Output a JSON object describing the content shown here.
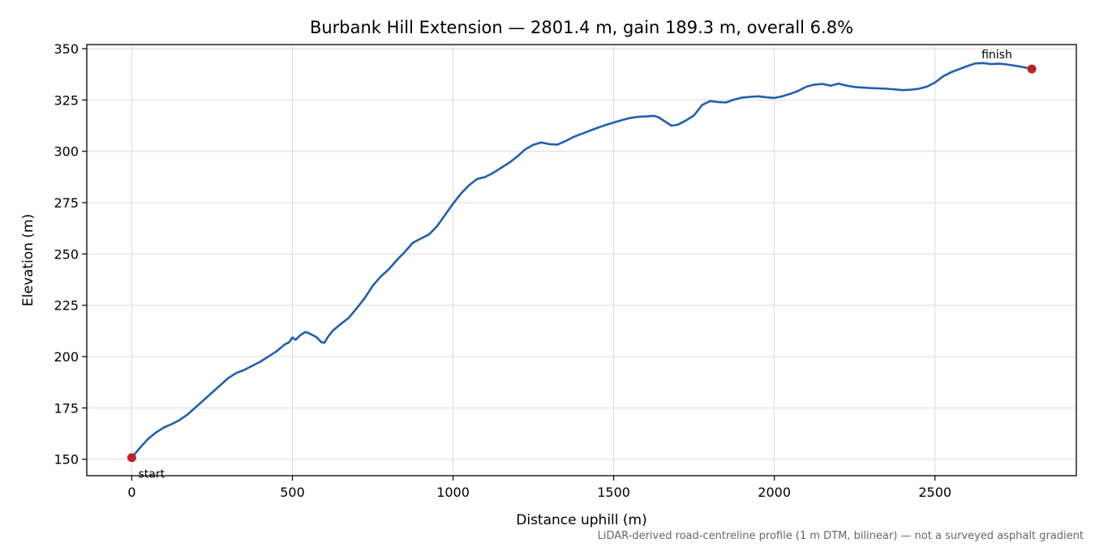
{
  "chart_data": {
    "type": "line",
    "title": "Burbank Hill Extension — 2801.4 m, gain 189.3 m, overall 6.8%",
    "xlabel": "Distance uphill (m)",
    "ylabel": "Elevation (m)",
    "xlim": [
      -140,
      2940
    ],
    "ylim": [
      142,
      352
    ],
    "x_ticks": [
      0,
      500,
      1000,
      1500,
      2000,
      2500
    ],
    "y_ticks": [
      150,
      175,
      200,
      225,
      250,
      275,
      300,
      325,
      350
    ],
    "grid": true,
    "line_color": "#2060b0",
    "marker_color": "#c0202d",
    "footnote": "LiDAR-derived road-centreline profile (1 m DTM, bilinear) — not a surveyed asphalt gradient",
    "annotations": [
      {
        "label": "start",
        "x": 0,
        "y": 150.8
      },
      {
        "label": "finish",
        "x": 2801.4,
        "y": 340.1
      }
    ],
    "series": [
      {
        "x": [
          0,
          25,
          50,
          75,
          100,
          125,
          150,
          175,
          200,
          250,
          300,
          325,
          350,
          400,
          450,
          475,
          490,
          500,
          510,
          525,
          540,
          550,
          575,
          590,
          600,
          610,
          625,
          640,
          650,
          675,
          700,
          725,
          750,
          775,
          800,
          825,
          850,
          875,
          900,
          925,
          950,
          975,
          1000,
          1025,
          1050,
          1075,
          1100,
          1125,
          1150,
          1175,
          1200,
          1225,
          1250,
          1275,
          1300,
          1325,
          1350,
          1375,
          1400,
          1425,
          1450,
          1475,
          1500,
          1525,
          1550,
          1575,
          1600,
          1625,
          1640,
          1660,
          1680,
          1700,
          1725,
          1750,
          1775,
          1800,
          1825,
          1850,
          1875,
          1900,
          1925,
          1950,
          1975,
          2000,
          2025,
          2050,
          2075,
          2100,
          2125,
          2150,
          2175,
          2200,
          2225,
          2250,
          2300,
          2350,
          2400,
          2425,
          2450,
          2475,
          2500,
          2525,
          2550,
          2575,
          2600,
          2625,
          2650,
          2675,
          2700,
          2725,
          2750,
          2775,
          2801.4
        ],
        "y": [
          150.8,
          155.5,
          159.8,
          163.0,
          165.5,
          167.2,
          169.2,
          172.0,
          175.5,
          182.5,
          189.5,
          192.0,
          193.5,
          197.5,
          202.5,
          205.8,
          207.0,
          209.3,
          208.2,
          210.5,
          212.0,
          211.5,
          209.5,
          207.0,
          206.8,
          209.5,
          212.5,
          214.5,
          215.8,
          218.8,
          223.5,
          228.5,
          234.5,
          239.0,
          242.5,
          247.0,
          251.0,
          255.5,
          257.5,
          259.5,
          263.5,
          269.0,
          274.5,
          279.5,
          283.5,
          286.5,
          287.5,
          289.5,
          292.0,
          294.5,
          297.5,
          301.0,
          303.2,
          304.3,
          303.5,
          303.3,
          305.0,
          307.0,
          308.5,
          310.0,
          311.5,
          312.8,
          314.0,
          315.2,
          316.2,
          316.8,
          317.0,
          317.3,
          316.5,
          314.5,
          312.5,
          313.0,
          315.0,
          317.5,
          322.5,
          324.5,
          324.0,
          323.8,
          325.2,
          326.2,
          326.5,
          326.8,
          326.3,
          326.0,
          326.8,
          328.0,
          329.5,
          331.5,
          332.5,
          332.8,
          332.0,
          333.0,
          332.0,
          331.3,
          330.8,
          330.5,
          329.8,
          330.0,
          330.5,
          331.5,
          333.5,
          336.5,
          338.5,
          340.0,
          341.5,
          342.8,
          343.0,
          342.5,
          342.7,
          342.3,
          341.7,
          341.0,
          340.1
        ]
      }
    ]
  }
}
